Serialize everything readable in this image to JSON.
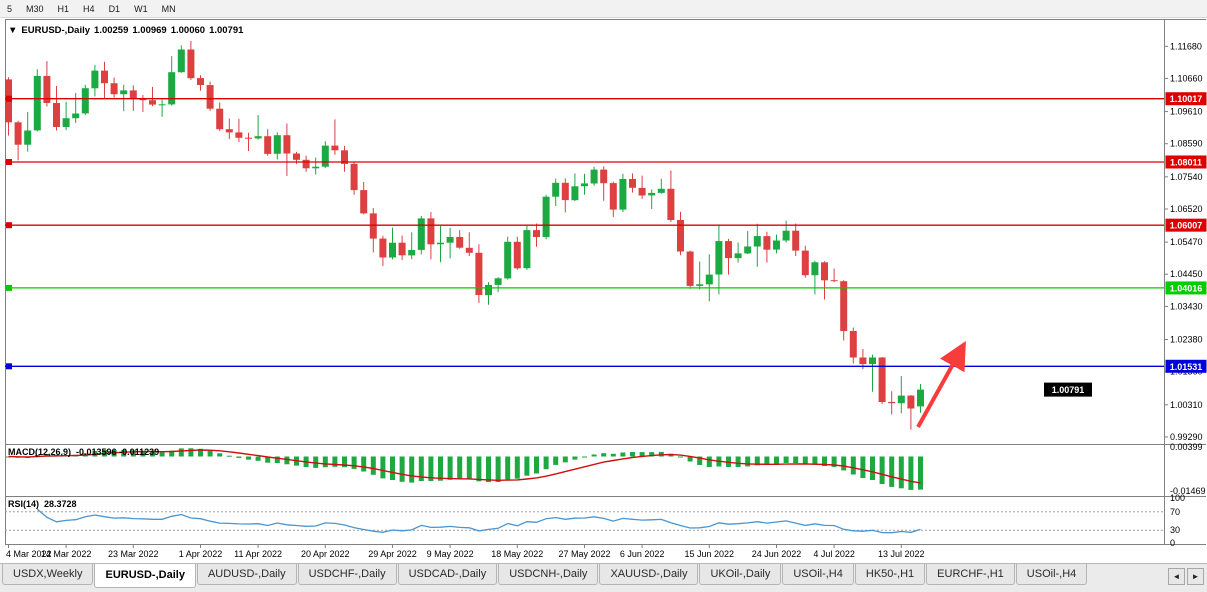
{
  "toolbar": {
    "timeframes": [
      "5",
      "M30",
      "H1",
      "H4",
      "D1",
      "W1",
      "MN"
    ]
  },
  "chart": {
    "marker": "▼",
    "symbol": "EURUSD-,Daily",
    "open": "1.00259",
    "high": "1.00969",
    "low": "1.00060",
    "close": "1.00791"
  },
  "indicators": {
    "macd": {
      "name": "MACD(12,26,9)",
      "values": "-0.013596 -0.011239",
      "axis_labels": [
        "0.00399",
        "-0.01469"
      ]
    },
    "rsi": {
      "name": "RSI(14)",
      "value": "28.3728",
      "axis_labels": [
        "100",
        "70",
        "30",
        "0"
      ],
      "level_lines": [
        70,
        30
      ]
    }
  },
  "colors": {
    "bull": "#1ca942",
    "bear": "#dd4040",
    "macd_hist": "#1ca942",
    "macd_signal": "#cc1111",
    "rsi_line": "#4a96d2",
    "rsi_level": "#a0a0a0",
    "grid_border": "#808080",
    "tag_text": "#ffffff"
  },
  "chart_data": {
    "type": "candlestick",
    "symbol": "EURUSD",
    "period": "Daily",
    "ylim": [
      0.9905,
      1.1253
    ],
    "y_ticks": [
      "1.11680",
      "1.10660",
      "1.09610",
      "1.08590",
      "1.07540",
      "1.06520",
      "1.05470",
      "1.04450",
      "1.03430",
      "1.02380",
      "1.01360",
      "1.00310",
      "0.99290"
    ],
    "x_ticks": [
      {
        "i": 0,
        "label": "4 Mar 2022"
      },
      {
        "i": 6,
        "label": "14 Mar 2022"
      },
      {
        "i": 13,
        "label": "23 Mar 2022"
      },
      {
        "i": 20,
        "label": "1 Apr 2022"
      },
      {
        "i": 26,
        "label": "11 Apr 2022"
      },
      {
        "i": 33,
        "label": "20 Apr 2022"
      },
      {
        "i": 40,
        "label": "29 Apr 2022"
      },
      {
        "i": 46,
        "label": "9 May 2022"
      },
      {
        "i": 53,
        "label": "18 May 2022"
      },
      {
        "i": 60,
        "label": "27 May 2022"
      },
      {
        "i": 66,
        "label": "6 Jun 2022"
      },
      {
        "i": 73,
        "label": "15 Jun 2022"
      },
      {
        "i": 80,
        "label": "24 Jun 2022"
      },
      {
        "i": 86,
        "label": "4 Jul 2022"
      },
      {
        "i": 93,
        "label": "13 Jul 2022"
      }
    ],
    "levels": [
      {
        "price": 1.10017,
        "label": "1.10017",
        "color": "#dd0000"
      },
      {
        "price": 1.08011,
        "label": "1.08011",
        "color": "#dd0000"
      },
      {
        "price": 1.06007,
        "label": "1.06007",
        "color": "#dd0000"
      },
      {
        "price": 1.04016,
        "label": "1.04016",
        "color": "#00cc00"
      },
      {
        "price": 1.01531,
        "label": "1.01531",
        "color": "#0000dd"
      }
    ],
    "current_price_tag": {
      "label": "1.00791",
      "x": 1044,
      "color": "#000000"
    },
    "trend_arrow": {
      "x1": 918,
      "y1": 427,
      "x2": 962,
      "y2": 348,
      "color": "#f83b3b"
    },
    "candles": [
      [
        1.1063,
        1.107,
        1.0885,
        1.0927
      ],
      [
        1.0927,
        1.0932,
        1.0806,
        1.0856
      ],
      [
        1.0856,
        1.096,
        1.0834,
        1.0901
      ],
      [
        1.0901,
        1.1095,
        1.0898,
        1.1074
      ],
      [
        1.1074,
        1.1121,
        1.0977,
        1.0988
      ],
      [
        1.0988,
        1.1042,
        1.0901,
        1.0912
      ],
      [
        1.0912,
        1.0992,
        1.0902,
        1.094
      ],
      [
        1.094,
        1.102,
        1.0925,
        1.0955
      ],
      [
        1.0955,
        1.1046,
        1.095,
        1.1035
      ],
      [
        1.1035,
        1.1109,
        1.1009,
        1.1091
      ],
      [
        1.1091,
        1.1119,
        1.1003,
        1.1051
      ],
      [
        1.1051,
        1.1069,
        1.1005,
        1.1016
      ],
      [
        1.1016,
        1.1046,
        1.0962,
        1.1028
      ],
      [
        1.1028,
        1.1044,
        1.0963,
        1.1003
      ],
      [
        1.1003,
        1.1014,
        1.096,
        1.0997
      ],
      [
        1.0997,
        1.1039,
        1.0978,
        1.0983
      ],
      [
        1.0983,
        1.0999,
        1.0944,
        1.0984
      ],
      [
        1.0984,
        1.1137,
        1.098,
        1.1086
      ],
      [
        1.1086,
        1.1171,
        1.1084,
        1.1158
      ],
      [
        1.1158,
        1.1185,
        1.1061,
        1.1067
      ],
      [
        1.1067,
        1.1076,
        1.1027,
        1.1045
      ],
      [
        1.1045,
        1.1056,
        1.0963,
        1.097
      ],
      [
        1.097,
        1.099,
        1.0899,
        1.0905
      ],
      [
        1.0905,
        1.0939,
        1.0874,
        1.0895
      ],
      [
        1.0895,
        1.0938,
        1.0864,
        1.0878
      ],
      [
        1.0878,
        1.0894,
        1.0836,
        1.0876
      ],
      [
        1.0876,
        1.095,
        1.0872,
        1.0883
      ],
      [
        1.0883,
        1.0905,
        1.0821,
        1.0827
      ],
      [
        1.0827,
        1.0895,
        1.0809,
        1.0886
      ],
      [
        1.0886,
        1.0923,
        1.0757,
        1.0828
      ],
      [
        1.0828,
        1.0833,
        1.0795,
        1.0808
      ],
      [
        1.0808,
        1.0821,
        1.077,
        1.0781
      ],
      [
        1.0781,
        1.0815,
        1.0761,
        1.0786
      ],
      [
        1.0786,
        1.0867,
        1.0782,
        1.0853
      ],
      [
        1.0853,
        1.0936,
        1.0824,
        1.0838
      ],
      [
        1.0838,
        1.0852,
        1.077,
        1.0795
      ],
      [
        1.0795,
        1.08,
        1.0697,
        1.0712
      ],
      [
        1.0712,
        1.0738,
        1.0635,
        1.0638
      ],
      [
        1.0638,
        1.0655,
        1.0514,
        1.0558
      ],
      [
        1.0558,
        1.0567,
        1.0471,
        1.0498
      ],
      [
        1.0498,
        1.0593,
        1.0492,
        1.0545
      ],
      [
        1.0545,
        1.0568,
        1.049,
        1.0505
      ],
      [
        1.0505,
        1.0578,
        1.0493,
        1.0522
      ],
      [
        1.0522,
        1.063,
        1.0508,
        1.0622
      ],
      [
        1.0622,
        1.0642,
        1.0492,
        1.054
      ],
      [
        1.054,
        1.0599,
        1.0483,
        1.0545
      ],
      [
        1.0545,
        1.0592,
        1.0495,
        1.0563
      ],
      [
        1.0563,
        1.0585,
        1.0526,
        1.0529
      ],
      [
        1.0529,
        1.0578,
        1.0503,
        1.0513
      ],
      [
        1.0513,
        1.054,
        1.0354,
        1.0379
      ],
      [
        1.0379,
        1.042,
        1.0348,
        1.0411
      ],
      [
        1.0411,
        1.0436,
        1.0388,
        1.0432
      ],
      [
        1.0432,
        1.0564,
        1.0428,
        1.0548
      ],
      [
        1.0548,
        1.0564,
        1.0459,
        1.0464
      ],
      [
        1.0464,
        1.0599,
        1.0459,
        1.0585
      ],
      [
        1.0585,
        1.0606,
        1.0532,
        1.0563
      ],
      [
        1.0563,
        1.0697,
        1.0556,
        1.0691
      ],
      [
        1.0691,
        1.0748,
        1.0661,
        1.0735
      ],
      [
        1.0735,
        1.0749,
        1.0641,
        1.068
      ],
      [
        1.068,
        1.0765,
        1.0677,
        1.0724
      ],
      [
        1.0724,
        1.0764,
        1.0697,
        1.0733
      ],
      [
        1.0733,
        1.0786,
        1.0726,
        1.0777
      ],
      [
        1.0777,
        1.0787,
        1.0678,
        1.0734
      ],
      [
        1.0734,
        1.0739,
        1.0627,
        1.065
      ],
      [
        1.065,
        1.0764,
        1.0642,
        1.0747
      ],
      [
        1.0747,
        1.0765,
        1.0704,
        1.0719
      ],
      [
        1.0719,
        1.0758,
        1.0684,
        1.0695
      ],
      [
        1.0695,
        1.0714,
        1.0652,
        1.0703
      ],
      [
        1.0703,
        1.0748,
        1.07,
        1.0716
      ],
      [
        1.0716,
        1.0774,
        1.0611,
        1.0617
      ],
      [
        1.0617,
        1.0643,
        1.0505,
        1.0517
      ],
      [
        1.0517,
        1.052,
        1.0399,
        1.0408
      ],
      [
        1.0408,
        1.0485,
        1.0397,
        1.0413
      ],
      [
        1.0413,
        1.0508,
        1.0359,
        1.0444
      ],
      [
        1.0444,
        1.0601,
        1.0381,
        1.055
      ],
      [
        1.055,
        1.0557,
        1.0444,
        1.0496
      ],
      [
        1.0496,
        1.0546,
        1.0482,
        1.0511
      ],
      [
        1.0511,
        1.0582,
        1.0509,
        1.0533
      ],
      [
        1.0533,
        1.0605,
        1.0469,
        1.0566
      ],
      [
        1.0566,
        1.058,
        1.0482,
        1.0523
      ],
      [
        1.0523,
        1.0571,
        1.0511,
        1.0552
      ],
      [
        1.0552,
        1.0615,
        1.0546,
        1.0583
      ],
      [
        1.0583,
        1.0606,
        1.0503,
        1.052
      ],
      [
        1.052,
        1.0536,
        1.0434,
        1.0442
      ],
      [
        1.0442,
        1.0488,
        1.0381,
        1.0483
      ],
      [
        1.0483,
        1.0486,
        1.0365,
        1.0426
      ],
      [
        1.0426,
        1.0463,
        1.042,
        1.0423
      ],
      [
        1.0423,
        1.0426,
        1.0235,
        1.0265
      ],
      [
        1.0265,
        1.0276,
        1.0162,
        1.0181
      ],
      [
        1.0181,
        1.0208,
        1.0144,
        1.016
      ],
      [
        1.016,
        1.019,
        1.0072,
        1.0181
      ],
      [
        1.0181,
        1.0183,
        1.0033,
        1.004
      ],
      [
        1.004,
        1.0074,
        1.0,
        1.0036
      ],
      [
        1.0036,
        1.0122,
        1.0004,
        1.006
      ],
      [
        1.006,
        1.0062,
        0.9952,
        1.0019
      ],
      [
        1.00259,
        1.00969,
        1.0006,
        1.00791
      ]
    ]
  },
  "tabs": [
    {
      "label": "USDX,Weekly",
      "active": false
    },
    {
      "label": "EURUSD-,Daily",
      "active": true
    },
    {
      "label": "AUDUSD-,Daily",
      "active": false
    },
    {
      "label": "USDCHF-,Daily",
      "active": false
    },
    {
      "label": "USDCAD-,Daily",
      "active": false
    },
    {
      "label": "USDCNH-,Daily",
      "active": false
    },
    {
      "label": "XAUUSD-,Daily",
      "active": false
    },
    {
      "label": "UKOil-,Daily",
      "active": false
    },
    {
      "label": "USOil-,H4",
      "active": false
    },
    {
      "label": "HK50-,H1",
      "active": false
    },
    {
      "label": "EURCHF-,H1",
      "active": false
    },
    {
      "label": "USOil-,H4",
      "active": false
    }
  ],
  "tab_scroll": {
    "left": "◄",
    "right": "►"
  }
}
